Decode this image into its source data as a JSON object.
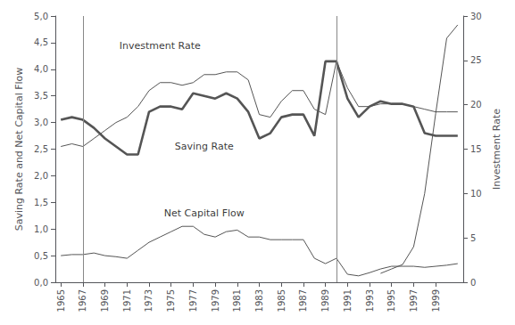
{
  "chart_data": {
    "type": "line",
    "x": [
      1965,
      1966,
      1967,
      1968,
      1969,
      1970,
      1971,
      1972,
      1973,
      1974,
      1975,
      1976,
      1977,
      1978,
      1979,
      1980,
      1981,
      1982,
      1983,
      1984,
      1985,
      1986,
      1987,
      1988,
      1989,
      1990,
      1991,
      1992,
      1993,
      1994,
      1995,
      1996,
      1997,
      1998,
      1999,
      2000,
      2001
    ],
    "series": [
      {
        "color": "#555555",
        "line_style": "thin",
        "values": [
          2.55,
          2.6,
          2.55,
          2.7,
          2.85,
          3.0,
          3.1,
          3.3,
          3.6,
          3.75,
          3.75,
          3.7,
          3.75,
          3.9,
          3.9,
          3.95,
          3.95,
          3.8,
          3.15,
          3.1,
          3.4,
          3.6,
          3.6,
          3.25,
          3.15,
          4.15,
          3.65,
          3.3,
          3.3,
          3.35,
          3.35,
          3.35,
          3.3,
          3.25,
          3.2,
          3.2,
          3.2
        ]
      },
      {
        "color": "#555555",
        "line_style": "thick",
        "values": [
          3.05,
          3.1,
          3.05,
          2.9,
          2.7,
          2.55,
          2.4,
          2.4,
          3.2,
          3.3,
          3.3,
          3.25,
          3.55,
          3.5,
          3.45,
          3.55,
          3.45,
          3.2,
          2.7,
          2.8,
          3.1,
          3.15,
          3.15,
          2.75,
          4.15,
          4.15,
          3.45,
          3.1,
          3.3,
          3.4,
          3.35,
          3.35,
          3.3,
          2.8,
          2.75,
          2.75,
          2.75
        ]
      },
      {
        "color": "#555555",
        "line_style": "thin",
        "values": [
          0.5,
          0.52,
          0.52,
          0.55,
          0.5,
          0.48,
          0.45,
          0.6,
          0.75,
          0.85,
          0.95,
          1.05,
          1.05,
          0.9,
          0.85,
          0.95,
          0.98,
          0.85,
          0.85,
          0.8,
          0.8,
          0.8,
          0.8,
          0.45,
          0.35,
          0.45,
          0.15,
          0.12,
          0.18,
          0.25,
          0.3,
          0.3,
          0.3,
          0.28,
          0.3,
          0.32,
          0.35
        ]
      },
      {
        "color": "#555555",
        "line_style": "thin",
        "axis": "y2",
        "values": [
          null,
          null,
          null,
          null,
          null,
          null,
          null,
          null,
          null,
          null,
          null,
          null,
          null,
          null,
          null,
          null,
          null,
          null,
          null,
          null,
          null,
          null,
          null,
          null,
          null,
          null,
          null,
          null,
          null,
          1.0,
          1.5,
          2.0,
          4.0,
          10.0,
          19.0,
          27.5,
          29.0
        ]
      }
    ],
    "xlim": [
      1964.5,
      2001.5
    ],
    "xticks": [
      1965,
      1967,
      1969,
      1971,
      1973,
      1975,
      1977,
      1979,
      1981,
      1983,
      1985,
      1987,
      1989,
      1991,
      1993,
      1995,
      1997,
      1999
    ],
    "ylim": [
      0,
      5.0
    ],
    "yticks": [
      {
        "value": 0.0,
        "label": "0,0"
      },
      {
        "value": 0.5,
        "label": "0,5"
      },
      {
        "value": 1.0,
        "label": "1,0"
      },
      {
        "value": 1.5,
        "label": "1,5"
      },
      {
        "value": 2.0,
        "label": "2,0"
      },
      {
        "value": 2.5,
        "label": "2,5"
      },
      {
        "value": 3.0,
        "label": "3,0"
      },
      {
        "value": 3.5,
        "label": "3,5"
      },
      {
        "value": 4.0,
        "label": "4,0"
      },
      {
        "value": 4.5,
        "label": "4,5"
      },
      {
        "value": 5.0,
        "label": "5,0"
      }
    ],
    "y2lim": [
      0,
      30
    ],
    "y2ticks": [
      0,
      5,
      10,
      15,
      20,
      25,
      30
    ],
    "ylabel": "Saving Rate and Net Capital Flow",
    "y2label": "Investment Rate",
    "grid": false,
    "vlines": [
      {
        "x": 1967,
        "color": "#888888"
      },
      {
        "x": 1990,
        "color": "#888888"
      }
    ],
    "annotations": [
      {
        "text": "Investment Rate",
        "x": 1974,
        "y": 4.35
      },
      {
        "text": "Saving Rate",
        "x": 1978,
        "y": 2.45
      },
      {
        "text": "Net Capital Flow",
        "x": 1978,
        "y": 1.2
      }
    ]
  }
}
